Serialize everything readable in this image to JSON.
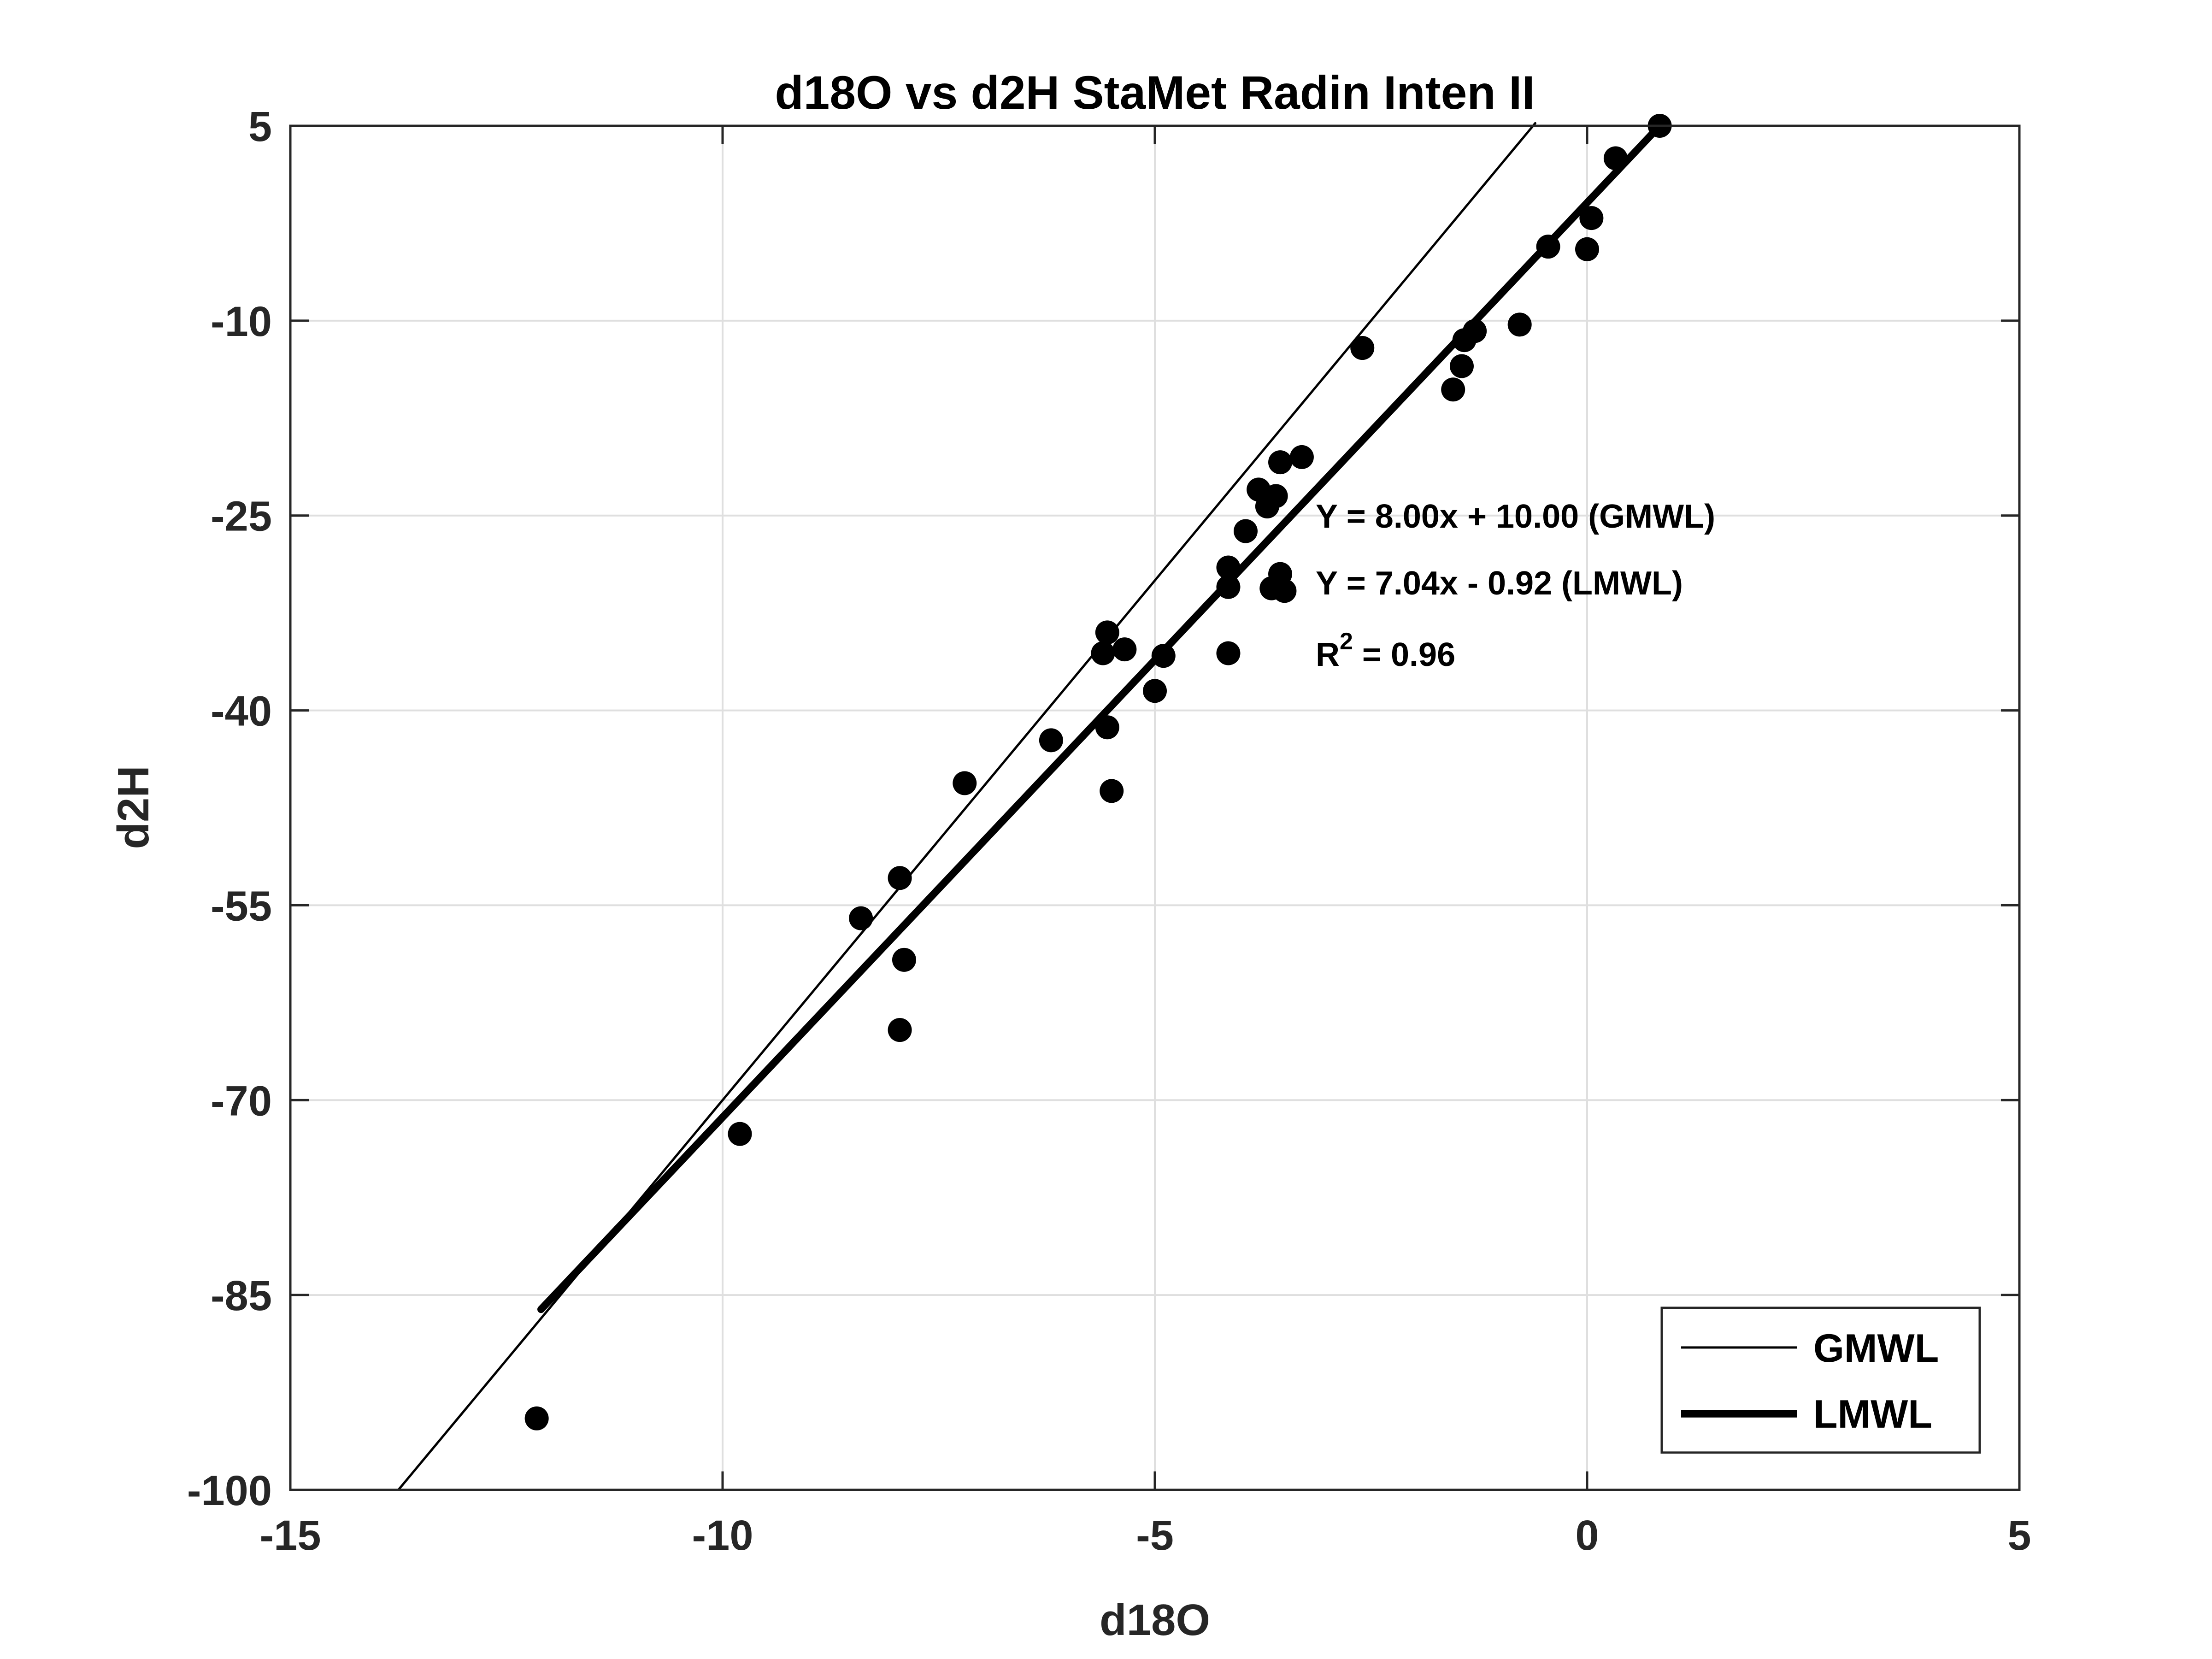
{
  "chart_data": {
    "type": "scatter",
    "title": "d18O vs d2H StaMet Radin Inten II",
    "xlabel": "d18O",
    "ylabel": "d2H",
    "xlim": [
      -15,
      5
    ],
    "ylim": [
      -100,
      5
    ],
    "xticks": [
      "-15",
      "-10",
      "-5",
      "0",
      "5"
    ],
    "yticks": [
      "-100",
      "-85",
      "-70",
      "-55",
      "-40",
      "-25",
      "-10",
      "5"
    ],
    "grid": true,
    "legend": {
      "position": "bottom-right",
      "entries": [
        "GMWL",
        "LMWL"
      ]
    },
    "annotations": {
      "gmwl_eq": "Y = 8.00x + 10.00 (GMWL)",
      "lmwl_eq": "Y = 7.04x - 0.92 (LMWL)",
      "r2_label": "R",
      "r2_sup": "2",
      "r2_value": " = 0.96"
    },
    "lines": [
      {
        "name": "GMWL",
        "slope": 8.0,
        "intercept": 10.0,
        "x_range": [
          -13.75,
          -0.6
        ],
        "color": "#000000"
      },
      {
        "name": "LMWL",
        "slope": 7.04,
        "intercept": -0.92,
        "x_range": [
          -12.1,
          0.84
        ],
        "color": "#000000"
      }
    ],
    "points": [
      {
        "x": 0.84,
        "y": 5.0
      },
      {
        "x": 0.33,
        "y": 2.5
      },
      {
        "x": 0.05,
        "y": -2.1
      },
      {
        "x": 0.0,
        "y": -4.5
      },
      {
        "x": -0.45,
        "y": -4.3
      },
      {
        "x": -0.78,
        "y": -10.3
      },
      {
        "x": -1.3,
        "y": -10.8
      },
      {
        "x": -1.42,
        "y": -11.5
      },
      {
        "x": -1.45,
        "y": -13.5
      },
      {
        "x": -1.55,
        "y": -15.3
      },
      {
        "x": -2.6,
        "y": -12.1
      },
      {
        "x": -3.3,
        "y": -20.5
      },
      {
        "x": -3.55,
        "y": -20.9
      },
      {
        "x": -3.6,
        "y": -23.5
      },
      {
        "x": -3.7,
        "y": -24.3
      },
      {
        "x": -3.8,
        "y": -23.0
      },
      {
        "x": -3.95,
        "y": -26.2
      },
      {
        "x": -4.15,
        "y": -29.0
      },
      {
        "x": -4.15,
        "y": -30.5
      },
      {
        "x": -4.15,
        "y": -35.6
      },
      {
        "x": -3.55,
        "y": -29.5
      },
      {
        "x": -3.5,
        "y": -30.8
      },
      {
        "x": -3.65,
        "y": -30.6
      },
      {
        "x": -4.9,
        "y": -35.8
      },
      {
        "x": -5.0,
        "y": -38.5
      },
      {
        "x": -5.35,
        "y": -35.3
      },
      {
        "x": -5.55,
        "y": -34.0
      },
      {
        "x": -5.6,
        "y": -35.6
      },
      {
        "x": -5.55,
        "y": -41.3
      },
      {
        "x": -5.5,
        "y": -46.2
      },
      {
        "x": -6.2,
        "y": -42.3
      },
      {
        "x": -7.2,
        "y": -45.6
      },
      {
        "x": -7.95,
        "y": -52.9
      },
      {
        "x": -8.4,
        "y": -56.0
      },
      {
        "x": -7.9,
        "y": -59.2
      },
      {
        "x": -7.95,
        "y": -64.6
      },
      {
        "x": -9.8,
        "y": -72.6
      },
      {
        "x": -12.15,
        "y": -94.5
      }
    ]
  }
}
